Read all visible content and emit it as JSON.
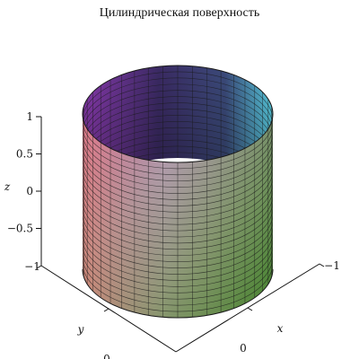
{
  "chart_data": {
    "type": "surface3d",
    "title": "Цилиндрическая поверхность",
    "surface": "cylinder",
    "radius": 1,
    "x_range": [
      -1,
      1
    ],
    "y_range": [
      -1,
      1
    ],
    "z_range": [
      -1,
      1
    ],
    "z_ticks": [
      1,
      0.5,
      0,
      -0.5
    ],
    "z_tick_labels": [
      "1",
      "0.5",
      "0",
      "−0.5"
    ],
    "x_ticks": [
      0,
      -1
    ],
    "x_tick_labels": [
      "0",
      "−1"
    ],
    "y_ticks": [
      -1,
      0
    ],
    "y_tick_labels": [
      "−1",
      "0"
    ],
    "axis_labels": {
      "x": "x",
      "y": "y",
      "z": "z"
    },
    "grid": true,
    "colors": {
      "top_right": "#5ad1e6",
      "top_left": "#b04ad6",
      "back_dark": "#3a2a63",
      "left_pink": "#e07ad7",
      "bottom_left": "#e0785a",
      "bottom_right": "#4a8a2c",
      "mesh": "#1a1a1a"
    }
  }
}
